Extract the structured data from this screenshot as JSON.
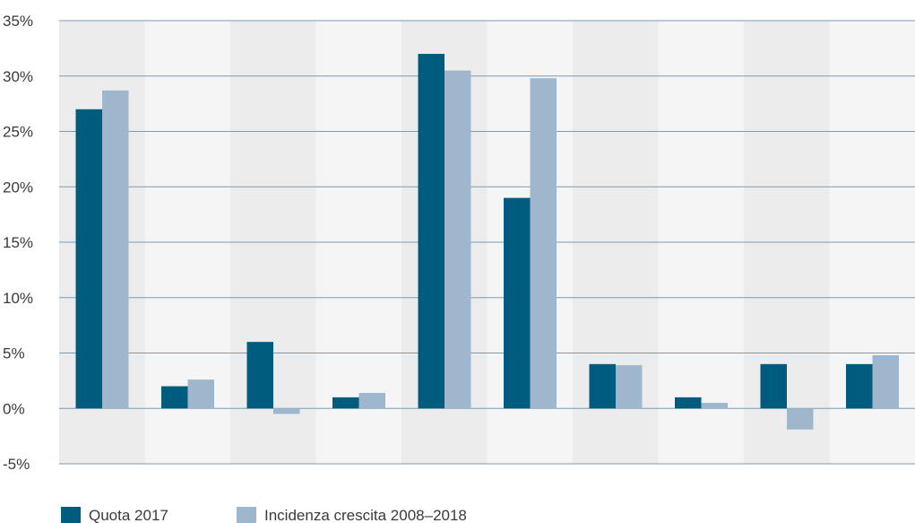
{
  "chart_data": {
    "type": "bar",
    "categories": [
      "",
      "",
      "",
      "",
      "",
      "",
      "",
      "",
      "",
      ""
    ],
    "series": [
      {
        "name": "Quota 2017",
        "values": [
          27,
          2,
          6,
          1,
          32,
          19,
          4,
          1,
          4,
          4
        ],
        "color": "#005c7f"
      },
      {
        "name": "Incidenza crescita 2008–2018",
        "values": [
          28.7,
          2.6,
          -0.5,
          1.4,
          30.5,
          29.8,
          3.9,
          0.5,
          -1.9,
          4.8
        ],
        "color": "#9fb7cc"
      }
    ],
    "ylim": [
      -5,
      35
    ],
    "yticks": [
      -5,
      0,
      5,
      10,
      15,
      20,
      25,
      30,
      35
    ],
    "ytick_labels": [
      "-5%",
      "0%",
      "5%",
      "10%",
      "15%",
      "20%",
      "25%",
      "30%",
      "35%"
    ],
    "grid": true,
    "legend": "bottom-left",
    "band_colors": [
      "#ececec",
      "#f5f5f5"
    ],
    "gridline_color": "#7a9bb3"
  }
}
